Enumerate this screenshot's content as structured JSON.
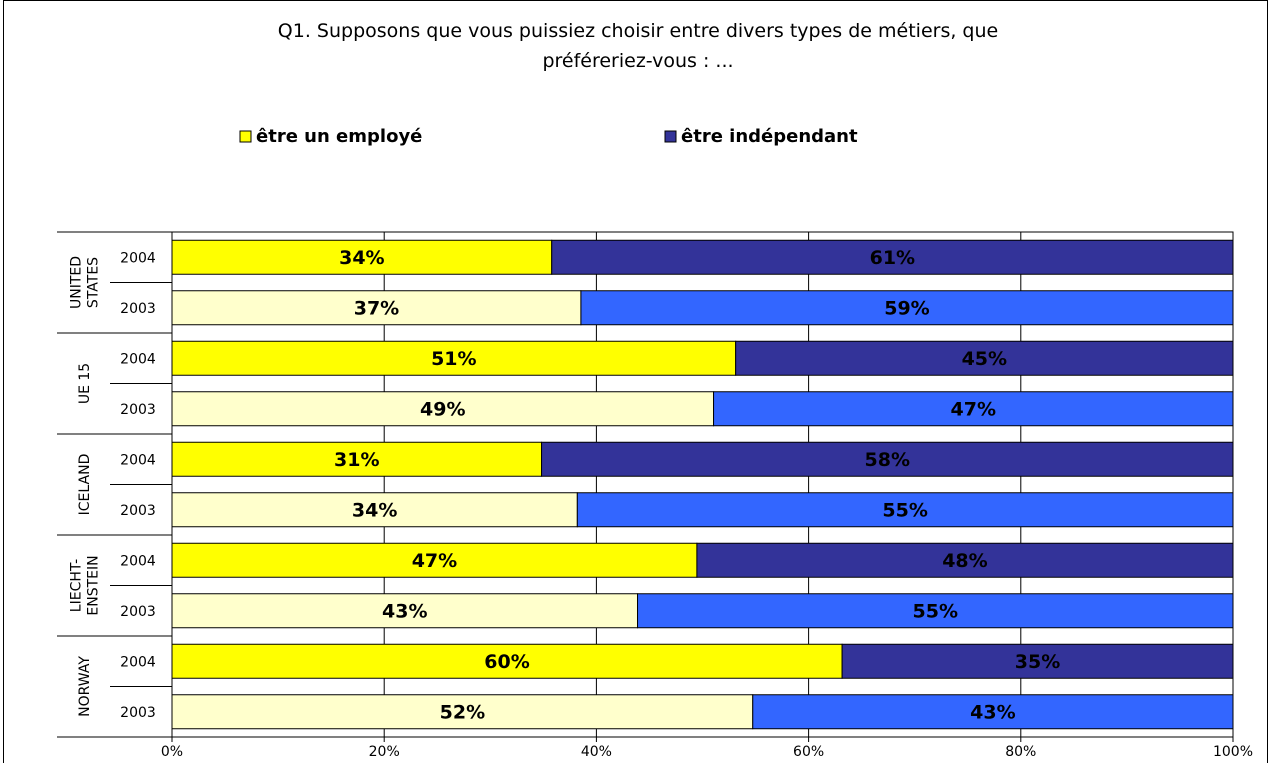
{
  "chart_data": {
    "type": "bar",
    "orientation": "horizontal",
    "stacking": "percent",
    "title": "Q1. Supposons que vous puissiez choisir entre divers types de métiers, que\npréféreriez-vous : ...",
    "groups": [
      "UNITED\nSTATES",
      "UE 15",
      "ICELAND",
      "LIECHT-\nENSTEIN",
      "NORWAY"
    ],
    "categories": [
      "2004",
      "2003",
      "2004",
      "2003",
      "2004",
      "2003",
      "2004",
      "2003",
      "2004",
      "2003"
    ],
    "series": [
      {
        "name": "être un employé",
        "color": "#ffff00",
        "colors": [
          "#ffff00",
          "#ffffcc",
          "#ffff00",
          "#ffffcc",
          "#ffff00",
          "#ffffcc",
          "#ffff00",
          "#ffffcc",
          "#ffff00",
          "#ffffcc"
        ],
        "values": [
          34,
          37,
          51,
          49,
          31,
          34,
          47,
          43,
          60,
          52
        ],
        "value_labels": [
          "34%",
          "37%",
          "51%",
          "49%",
          "31%",
          "34%",
          "47%",
          "43%",
          "60%",
          "52%"
        ],
        "label_color": "#000000"
      },
      {
        "name": "être indépendant",
        "color": "#333399",
        "colors": [
          "#333399",
          "#3366ff",
          "#333399",
          "#3366ff",
          "#333399",
          "#3366ff",
          "#333399",
          "#3366ff",
          "#333399",
          "#3366ff"
        ],
        "values": [
          61,
          59,
          45,
          47,
          58,
          55,
          48,
          55,
          35,
          43
        ],
        "value_labels": [
          "61%",
          "59%",
          "45%",
          "47%",
          "58%",
          "55%",
          "48%",
          "55%",
          "35%",
          "43%"
        ],
        "label_color": "#ffffff"
      }
    ],
    "xlim": [
      0,
      100
    ],
    "xticks": [
      {
        "value": 0,
        "label": "0%"
      },
      {
        "value": 20,
        "label": "20%"
      },
      {
        "value": 40,
        "label": "40%"
      },
      {
        "value": 60,
        "label": "60%"
      },
      {
        "value": 80,
        "label": "80%"
      },
      {
        "value": 100,
        "label": "100%"
      }
    ],
    "grid": true,
    "legend": "top"
  }
}
